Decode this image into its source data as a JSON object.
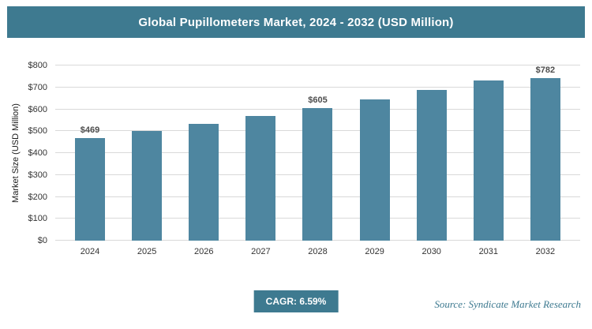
{
  "header": {
    "title": "Global Pupillometers Market, 2024 - 2032 (USD Million)"
  },
  "chart_data": {
    "type": "bar",
    "title": "Global Pupillometers Market, 2024 - 2032 (USD Million)",
    "ylabel": "Market Size (USD Million)",
    "xlabel": "",
    "categories": [
      "2024",
      "2025",
      "2026",
      "2027",
      "2028",
      "2029",
      "2030",
      "2031",
      "2032"
    ],
    "values": [
      469,
      500,
      533,
      568,
      605,
      645,
      688,
      733,
      782
    ],
    "data_labels": [
      "$469",
      "",
      "",
      "",
      "$605",
      "",
      "",
      "",
      "$782"
    ],
    "ylim": [
      0,
      800
    ],
    "ytick_step": 100,
    "ytick_prefix": "$",
    "grid": true,
    "legend": "none",
    "colors": {
      "bar": "#4e86a0",
      "header_bg": "#3e7a90",
      "badge_bg": "#3e7a90",
      "source_text": "#3e7a90",
      "gridline": "#d9d9d9"
    }
  },
  "footer": {
    "cagr_label": "CAGR: 6.59%",
    "source": "Source: Syndicate Market Research"
  }
}
